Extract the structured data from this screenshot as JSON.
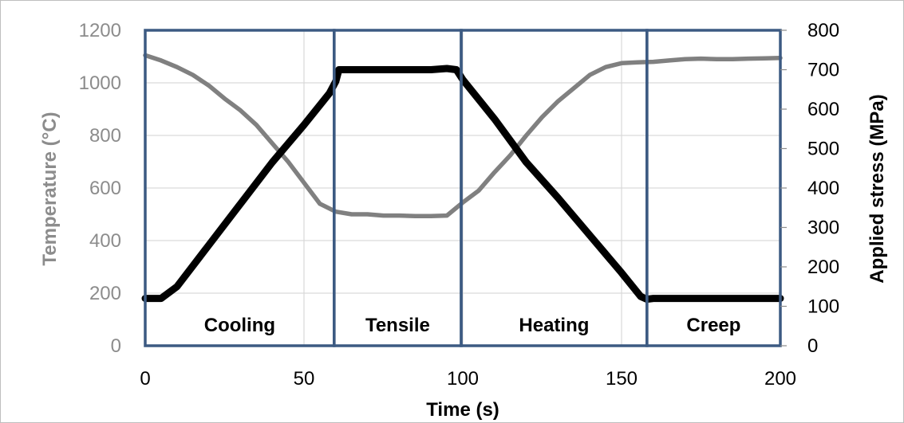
{
  "chart_data": {
    "type": "line",
    "xlabel": "Time (s)",
    "ylabel_left": "Temperature (°C)",
    "ylabel_right": "Applied stress (MPa)",
    "xlim": [
      0,
      200
    ],
    "ylim_left": [
      0,
      1200
    ],
    "ylim_right": [
      0,
      800
    ],
    "x_ticks": [
      "0",
      "50",
      "100",
      "150",
      "200"
    ],
    "y_left_ticks": [
      "0",
      "200",
      "400",
      "600",
      "800",
      "1000",
      "1200"
    ],
    "y_right_ticks": [
      "0",
      "100",
      "200",
      "300",
      "400",
      "500",
      "600",
      "700",
      "800"
    ],
    "grid": true,
    "phases": [
      {
        "label": "Cooling",
        "start": 0,
        "end": 59.5
      },
      {
        "label": "Tensile",
        "start": 59.5,
        "end": 99.5
      },
      {
        "label": "Heating",
        "start": 99.5,
        "end": 158
      },
      {
        "label": "Creep",
        "start": 158,
        "end": 200
      }
    ],
    "series": [
      {
        "axis": "left",
        "color": "#808080",
        "x": [
          0,
          5,
          10,
          15,
          20,
          25,
          30,
          35,
          40,
          45,
          50,
          55,
          60,
          65,
          70,
          75,
          80,
          85,
          90,
          95,
          100,
          105,
          110,
          115,
          120,
          125,
          130,
          135,
          140,
          145,
          150,
          155,
          160,
          165,
          170,
          175,
          180,
          185,
          190,
          195,
          200
        ],
        "y": [
          1105,
          1085,
          1060,
          1030,
          990,
          940,
          895,
          840,
          770,
          700,
          620,
          540,
          510,
          500,
          500,
          495,
          495,
          493,
          493,
          495,
          545,
          590,
          660,
          725,
          800,
          870,
          930,
          980,
          1030,
          1060,
          1075,
          1078,
          1080,
          1085,
          1090,
          1092,
          1090,
          1090,
          1092,
          1093,
          1095
        ]
      },
      {
        "axis": "right",
        "color": "#000000",
        "x": [
          0,
          5,
          10,
          20,
          30,
          40,
          50,
          58,
          60,
          61,
          65,
          70,
          80,
          90,
          95,
          98,
          100,
          110,
          120,
          130,
          140,
          150,
          156,
          158,
          160,
          170,
          180,
          190,
          200
        ],
        "y": [
          120,
          120,
          150,
          255,
          360,
          465,
          560,
          640,
          670,
          700,
          700,
          700,
          700,
          700,
          703,
          700,
          675,
          575,
          465,
          375,
          280,
          185,
          125,
          118,
          120,
          120,
          120,
          120,
          120
        ]
      }
    ]
  }
}
